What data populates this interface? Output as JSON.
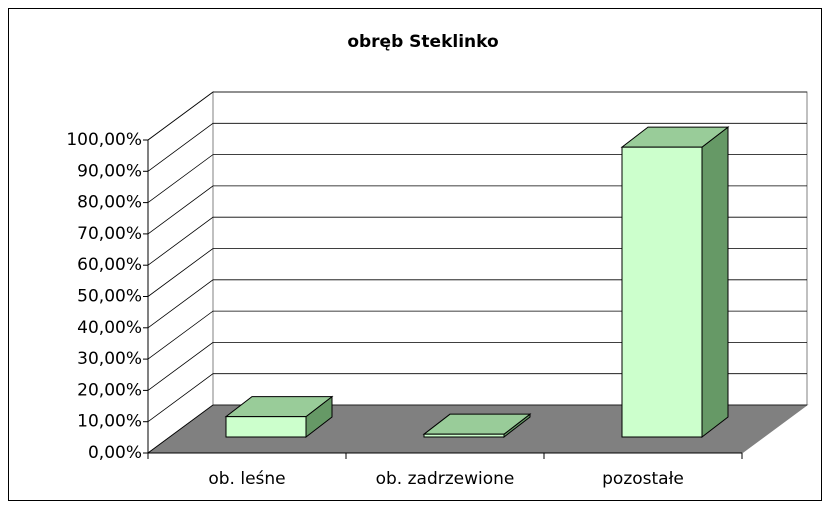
{
  "chart_data": {
    "type": "bar3d",
    "title": "obręb Steklinko",
    "categories": [
      "ob. leśne",
      "ob. zadrzewione",
      "pozostałe"
    ],
    "values": [
      6.5,
      0.9,
      92.6
    ],
    "colors": {
      "front": "#ccffcc",
      "top": "#99cc99",
      "side": "#669966"
    },
    "ylim": [
      0,
      100
    ],
    "yticks": [
      {
        "value": 0,
        "label": "0,00%"
      },
      {
        "value": 10,
        "label": "10,00%"
      },
      {
        "value": 20,
        "label": "20,00%"
      },
      {
        "value": 30,
        "label": "30,00%"
      },
      {
        "value": 40,
        "label": "40,00%"
      },
      {
        "value": 50,
        "label": "50,00%"
      },
      {
        "value": 60,
        "label": "60,00%"
      },
      {
        "value": 70,
        "label": "70,00%"
      },
      {
        "value": 80,
        "label": "80,00%"
      },
      {
        "value": 90,
        "label": "90,00%"
      },
      {
        "value": 100,
        "label": "100,00%"
      }
    ],
    "grid": true
  }
}
